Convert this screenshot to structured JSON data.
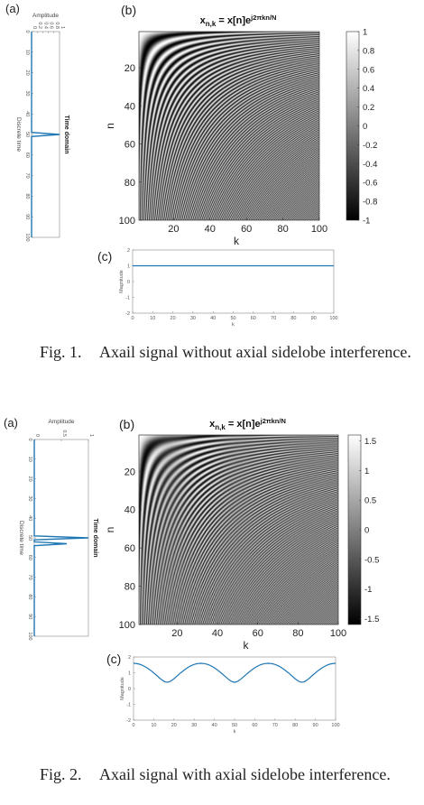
{
  "figures": [
    {
      "id": "fig1",
      "panel_labels": {
        "a": "(a)",
        "b": "(b)",
        "c": "(c)"
      },
      "caption": {
        "label": "Fig. 1.",
        "text": "Axail signal without axial sidelobe interference."
      }
    },
    {
      "id": "fig2",
      "panel_labels": {
        "a": "(a)",
        "b": "(b)",
        "c": "(c)"
      },
      "caption": {
        "label": "Fig. 2.",
        "text": "Axail signal with axial sidelobe interference."
      }
    }
  ],
  "chart_data": [
    {
      "figure": "Fig. 1",
      "panel": "(a)",
      "type": "line",
      "xlabel": "Amplitude",
      "ylabel": "Discrete time",
      "side_label": "Time domain",
      "xlim": [
        0,
        1
      ],
      "xticks": [
        "0",
        "0.2",
        "0.4",
        "0.6",
        "0.8",
        "1"
      ],
      "ylim": [
        0,
        100
      ],
      "yticks": [
        "0",
        "10",
        "20",
        "30",
        "40",
        "50",
        "60",
        "70",
        "80",
        "90",
        "100"
      ],
      "series": [
        {
          "x": [
            0,
            0,
            1,
            0,
            0
          ],
          "y": [
            0,
            49,
            50,
            51,
            100
          ]
        }
      ],
      "color": "#1f77b4"
    },
    {
      "figure": "Fig. 1",
      "panel": "(b)",
      "type": "heatmap",
      "title": "x_{n,k} = x[n]e^{j2πkn/N}",
      "title_main": "x",
      "title_sub": "n,k",
      "title_eq": " = x[n]e",
      "title_sup": "j2πkn/N",
      "xlabel": "k",
      "ylabel": "n",
      "xticks": [
        "20",
        "40",
        "60",
        "80",
        "100"
      ],
      "yticks": [
        "20",
        "40",
        "60",
        "80",
        "100"
      ],
      "xlim": [
        1,
        100
      ],
      "ylim": [
        1,
        100
      ],
      "N": 100,
      "impulses": [
        [
          50,
          1
        ]
      ],
      "colormap": "gray",
      "clim": [
        -1,
        1
      ],
      "colorbar_ticks": [
        "1",
        "0.8",
        "0.6",
        "0.4",
        "0.2",
        "0",
        "-0.2",
        "-0.4",
        "-0.6",
        "-0.8",
        "-1"
      ]
    },
    {
      "figure": "Fig. 1",
      "panel": "(c)",
      "type": "line",
      "xlabel": "k",
      "ylabel": "Magnitude",
      "xlim": [
        0,
        100
      ],
      "ylim": [
        -2,
        2
      ],
      "xticks": [
        "0",
        "10",
        "20",
        "30",
        "40",
        "50",
        "60",
        "70",
        "80",
        "90",
        "100"
      ],
      "yticks": [
        "2",
        "1",
        "0",
        "-1",
        "-2"
      ],
      "N": 100,
      "impulses": [
        [
          50,
          1
        ]
      ],
      "color": "#1f77b4"
    },
    {
      "figure": "Fig. 2",
      "panel": "(a)",
      "type": "line",
      "xlabel": "Amplitude",
      "ylabel": "Discrete time",
      "side_label": "Time domain",
      "xlim": [
        0,
        1
      ],
      "xticks": [
        "0",
        "0.5",
        "1"
      ],
      "ylim": [
        0,
        100
      ],
      "yticks": [
        "0",
        "10",
        "20",
        "30",
        "40",
        "50",
        "60",
        "70",
        "80",
        "90",
        "100"
      ],
      "series": [
        {
          "x": [
            0,
            0,
            1,
            0,
            0,
            0.6,
            0,
            0
          ],
          "y": [
            0,
            49,
            50,
            51,
            52,
            53,
            54,
            100
          ]
        }
      ],
      "color": "#1f77b4"
    },
    {
      "figure": "Fig. 2",
      "panel": "(b)",
      "type": "heatmap",
      "title": "x_{n,k} = x[n]e^{j2πkn/N}",
      "title_main": "x",
      "title_sub": "n,k",
      "title_eq": " = x[n]e",
      "title_sup": "j2πkn/N",
      "xlabel": "k",
      "ylabel": "n",
      "xticks": [
        "20",
        "40",
        "60",
        "80",
        "100"
      ],
      "yticks": [
        "20",
        "40",
        "60",
        "80",
        "100"
      ],
      "xlim": [
        1,
        100
      ],
      "ylim": [
        1,
        100
      ],
      "N": 100,
      "impulses": [
        [
          50,
          1
        ],
        [
          53,
          0.6
        ]
      ],
      "colormap": "gray",
      "clim": [
        -1.6,
        1.6
      ],
      "colorbar_ticks": [
        "1.5",
        "1",
        "0.5",
        "0",
        "-0.5",
        "-1",
        "-1.5"
      ]
    },
    {
      "figure": "Fig. 2",
      "panel": "(c)",
      "type": "line",
      "xlabel": "k",
      "ylabel": "Magnitude",
      "xlim": [
        0,
        100
      ],
      "ylim": [
        -2,
        2
      ],
      "xticks": [
        "0",
        "10",
        "20",
        "30",
        "40",
        "50",
        "60",
        "70",
        "80",
        "90",
        "100"
      ],
      "yticks": [
        "2",
        "1",
        "0",
        "-1",
        "-2"
      ],
      "N": 100,
      "impulses": [
        [
          50,
          1
        ],
        [
          53,
          0.6
        ]
      ],
      "color": "#1f77b4"
    }
  ]
}
